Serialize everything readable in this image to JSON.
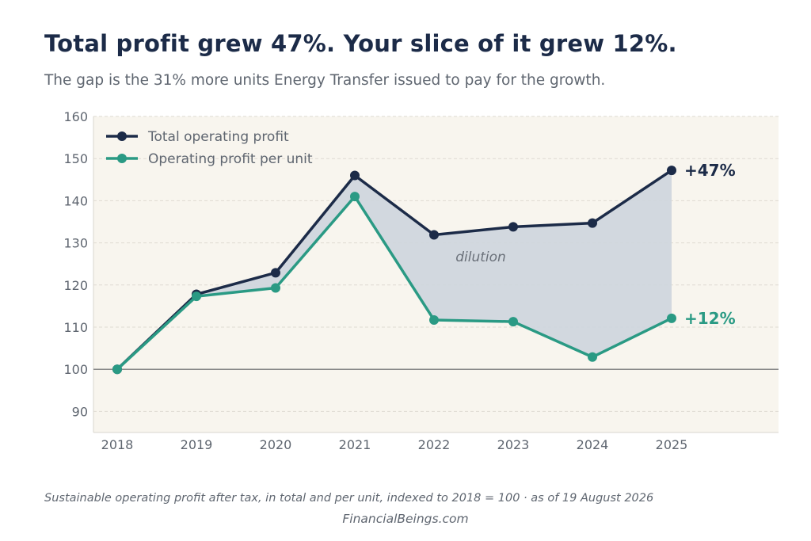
{
  "title": "Total profit grew 47%. Your slice of it grew 12%.",
  "subtitle": "The gap is the 31% more units Energy Transfer issued to pay for the growth.",
  "caption": "Sustainable operating profit after tax, in total and per unit, indexed to 2018 = 100  ·  as of 19 August 2026",
  "source": "FinancialBeings.com",
  "colors": {
    "total": "#1c2b48",
    "per_unit": "#2a9a84",
    "gap_fill": "#cdd5dd",
    "plot_bg": "#f8f5ee",
    "baseline": "#8a8a8a"
  },
  "chart_data": {
    "type": "line",
    "x": [
      "2018",
      "2019",
      "2020",
      "2021",
      "2022",
      "2023",
      "2024",
      "2025"
    ],
    "series": [
      {
        "name": "Total operating profit",
        "values": [
          100,
          117.8,
          122.9,
          146.0,
          131.9,
          133.8,
          134.7,
          147.2
        ],
        "end_label": "+47%"
      },
      {
        "name": "Operating profit per unit",
        "values": [
          100,
          117.3,
          119.3,
          141.0,
          111.7,
          111.3,
          102.9,
          112.1
        ],
        "end_label": "+12%"
      }
    ],
    "y_ticks": [
      "90",
      "100",
      "110",
      "120",
      "130",
      "140",
      "150",
      "160"
    ],
    "ylim": [
      85,
      160
    ],
    "baseline": 100,
    "shaded_annotation": "dilution",
    "legend_position": "top-left",
    "grid": true
  }
}
